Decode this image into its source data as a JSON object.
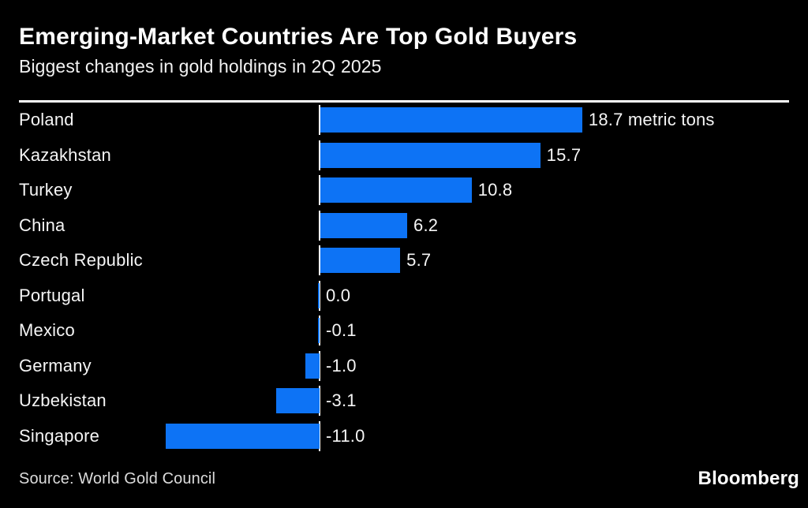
{
  "header": {
    "title": "Emerging-Market Countries Are Top Gold Buyers",
    "subtitle": "Biggest changes in gold holdings in 2Q 2025"
  },
  "footer": {
    "source": "Source: World Gold Council",
    "logo": "Bloomberg"
  },
  "colors": {
    "background": "#000000",
    "bar": "#0D73F5",
    "baseline": "#FFFFFF",
    "text": "#F5F5F5"
  },
  "chart_data": {
    "type": "bar",
    "orientation": "horizontal",
    "title": "Emerging-Market Countries Are Top Gold Buyers",
    "subtitle": "Biggest changes in gold holdings in 2Q 2025",
    "unit": "metric tons",
    "categories": [
      "Poland",
      "Kazakhstan",
      "Turkey",
      "China",
      "Czech Republic",
      "Portugal",
      "Mexico",
      "Germany",
      "Uzbekistan",
      "Singapore"
    ],
    "values": [
      18.7,
      15.7,
      10.8,
      6.2,
      5.7,
      0.0,
      -0.1,
      -1.0,
      -3.1,
      -11.0
    ],
    "value_labels": [
      "18.7 metric tons",
      "15.7",
      "10.8",
      "6.2",
      "5.7",
      "0.0",
      "-0.1",
      "-1.0",
      "-3.1",
      "-11.0"
    ],
    "xlim": [
      -11.0,
      18.7
    ],
    "grid": false,
    "legend": false,
    "baseline_at_zero": true
  }
}
